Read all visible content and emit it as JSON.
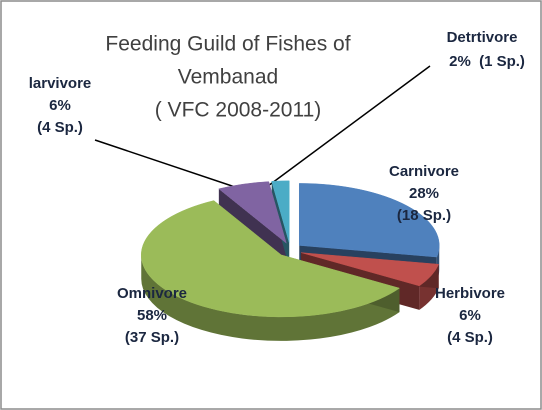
{
  "chart_data": {
    "type": "pie3d",
    "title": [
      "Feeding Guild of Fishes of",
      "Vembanad",
      "( VFC 2008-2011)"
    ],
    "categories": [
      "Carnivore",
      "Herbivore",
      "Omnivore",
      "larvivore",
      "Detrtivore"
    ],
    "values": [
      28,
      6,
      58,
      6,
      2
    ],
    "value_labels": [
      "28%",
      "6%",
      "58%",
      "6%",
      "2%"
    ],
    "sublabels": [
      "(18 Sp.)",
      "(4 Sp.)",
      "(37 Sp.)",
      "(4 Sp.)",
      "(1 Sp.)"
    ],
    "colors": [
      "#4f81bd",
      "#c0504d",
      "#9bbb59",
      "#8064a2",
      "#4bacc6"
    ]
  }
}
